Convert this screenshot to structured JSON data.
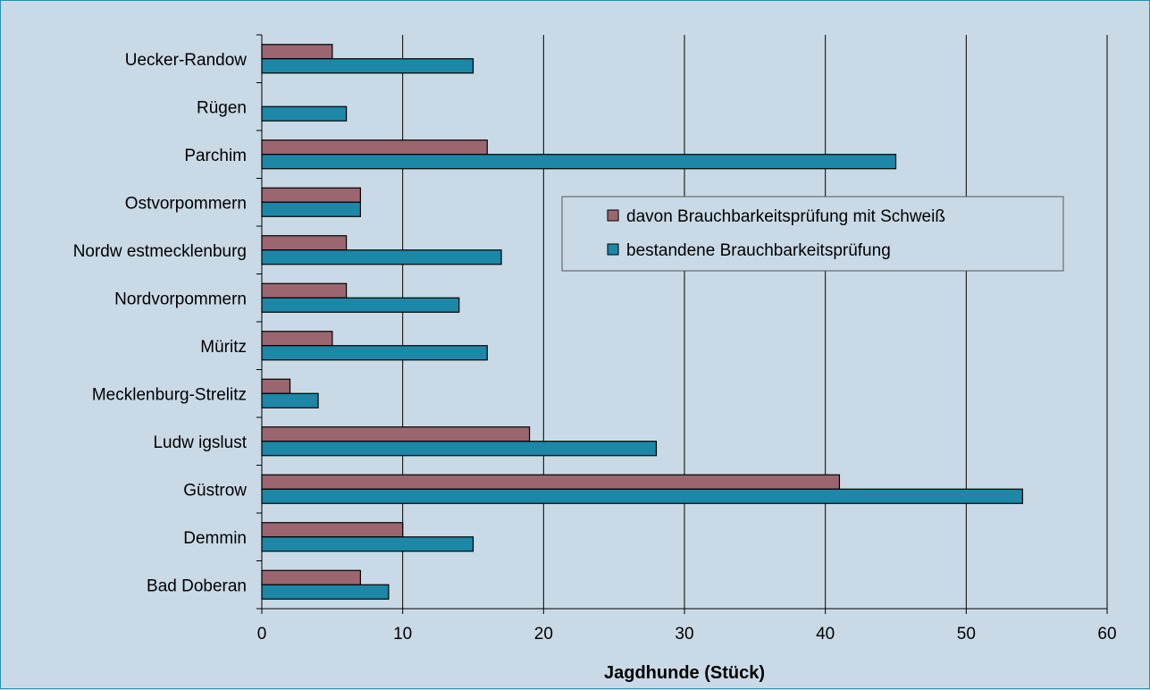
{
  "chart_data": {
    "type": "bar",
    "orientation": "horizontal",
    "categories": [
      "Uecker-Randow",
      "Rügen",
      "Parchim",
      "Ostvorpommern",
      "Nordw estmecklenburg",
      "Nordvorpommern",
      "Müritz",
      "Mecklenburg-Strelitz",
      "Ludw igslust",
      "Güstrow",
      "Demmin",
      "Bad Doberan"
    ],
    "series": [
      {
        "name": "davon Brauchbarkeitsprüfung mit Schweiß",
        "color": "#9b6670",
        "values": [
          5,
          0,
          16,
          7,
          6,
          6,
          5,
          2,
          19,
          41,
          10,
          7
        ]
      },
      {
        "name": "bestandene Brauchbarkeitsprüfung",
        "color": "#1d87a8",
        "values": [
          15,
          6,
          45,
          7,
          17,
          14,
          16,
          4,
          28,
          54,
          15,
          9
        ]
      }
    ],
    "xlabel": "Jagdhunde (Stück)",
    "xlim": [
      0,
      60
    ],
    "xticks": [
      0,
      10,
      20,
      30,
      40,
      50,
      60
    ],
    "grid": "vertical",
    "legend_position": "upper-right-inside",
    "background": "#c9dae6"
  }
}
